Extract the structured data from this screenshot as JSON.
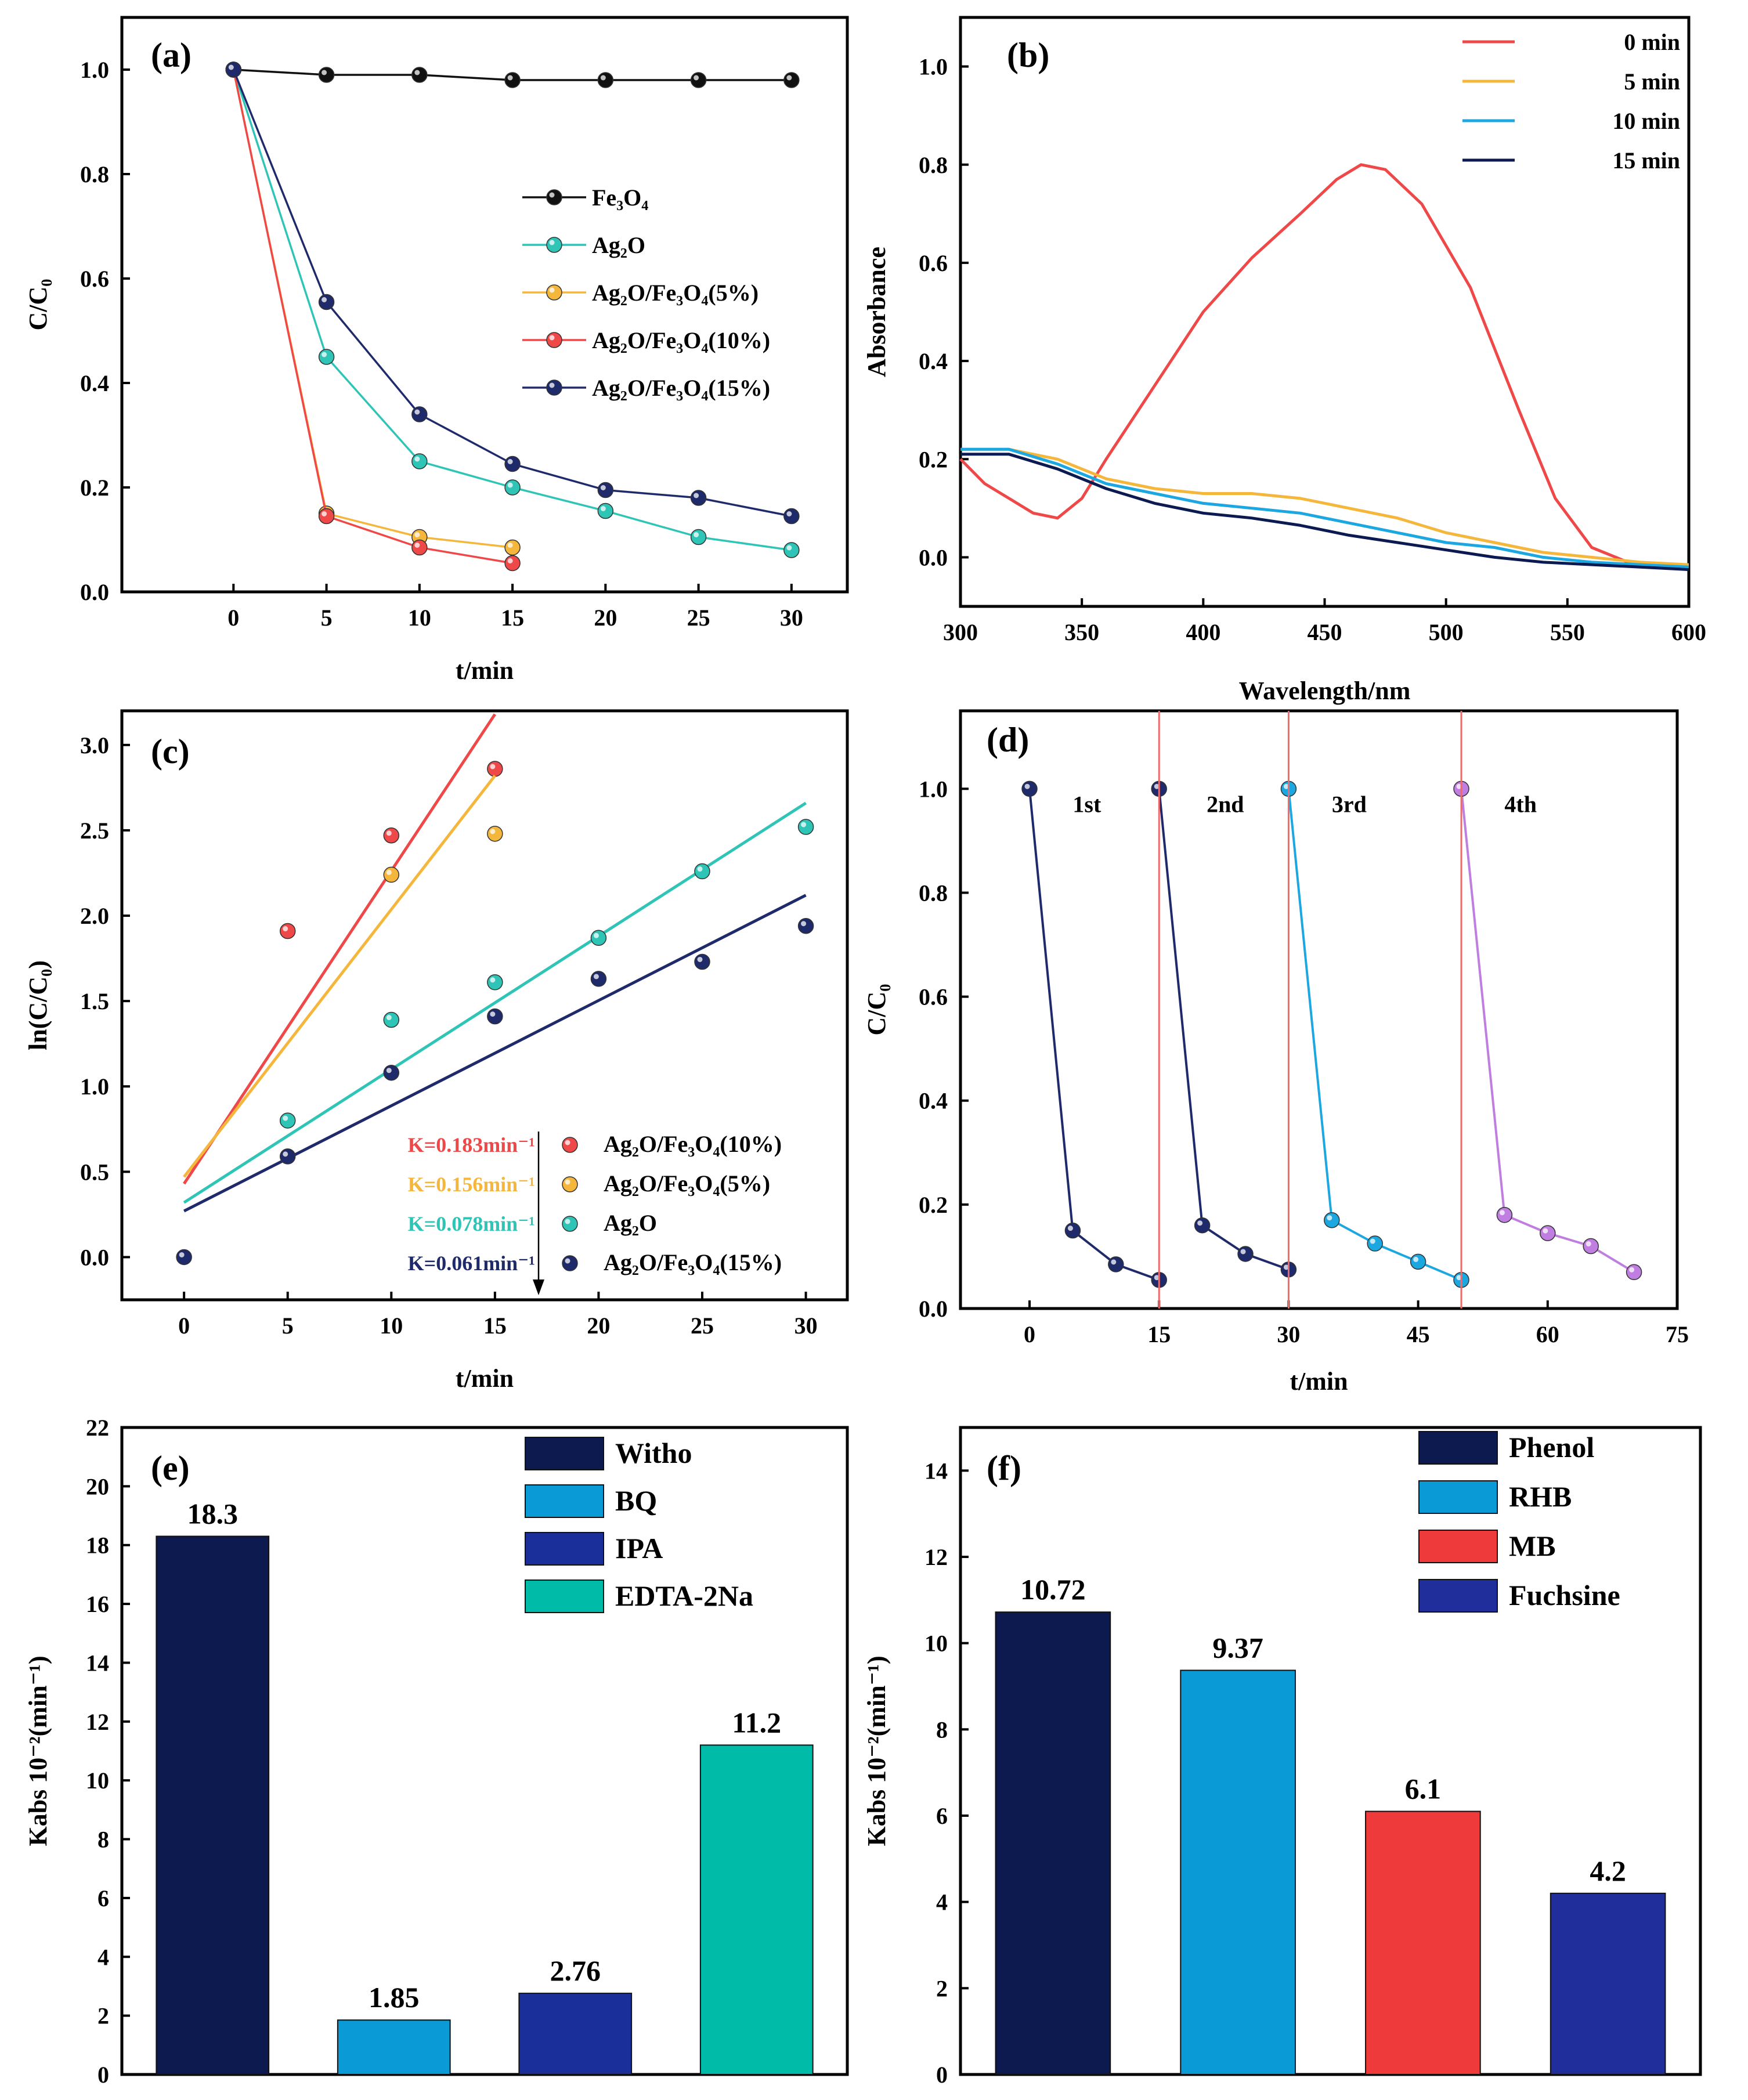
{
  "colors": {
    "black": "#111111",
    "teal": "#2ec4b6",
    "orange": "#f5b63c",
    "red": "#ef4848",
    "navy": "#1f2a6b",
    "blue": "#1da7e0",
    "purple": "#c07ee0",
    "darknavy": "#0b1a50",
    "barnavy": "#0d1a4f",
    "barblue": "#0a9ad6",
    "bardarkblue": "#1a2f9a",
    "barteal": "#00bba8",
    "barred": "#ee3a3a",
    "barviolet": "#1f2e9a"
  },
  "chart_data": [
    {
      "id": "a",
      "panel_label": "(a)",
      "type": "line",
      "xlabel": "t/min",
      "ylabel": "C/C₀",
      "xlim": [
        -6,
        33
      ],
      "ylim": [
        0,
        1.1
      ],
      "xticks": [
        0,
        5,
        10,
        15,
        20,
        25,
        30
      ],
      "yticks": [
        0.0,
        0.2,
        0.4,
        0.6,
        0.8,
        1.0
      ],
      "ytick_labels": [
        "0.0",
        "0.2",
        "0.4",
        "0.6",
        "0.8",
        "1.0"
      ],
      "series": [
        {
          "name": "Fe₃O₄",
          "color": "black",
          "x": [
            0,
            5,
            10,
            15,
            20,
            25,
            30
          ],
          "y": [
            1.0,
            0.99,
            0.99,
            0.98,
            0.98,
            0.98,
            0.98
          ]
        },
        {
          "name": "Ag₂O",
          "color": "teal",
          "x": [
            0,
            5,
            10,
            15,
            20,
            25,
            30
          ],
          "y": [
            1.0,
            0.45,
            0.25,
            0.2,
            0.155,
            0.105,
            0.08
          ]
        },
        {
          "name": "Ag₂O/Fe₃O₄(5%)",
          "color": "orange",
          "x": [
            0,
            5,
            10,
            15
          ],
          "y": [
            1.0,
            0.15,
            0.105,
            0.085
          ]
        },
        {
          "name": "Ag₂O/Fe₃O₄(10%)",
          "color": "red",
          "x": [
            0,
            5,
            10,
            15
          ],
          "y": [
            1.0,
            0.145,
            0.085,
            0.055
          ]
        },
        {
          "name": "Ag₂O/Fe₃O₄(15%)",
          "color": "navy",
          "x": [
            0,
            5,
            10,
            15,
            20,
            25,
            30
          ],
          "y": [
            1.0,
            0.555,
            0.34,
            0.245,
            0.195,
            0.18,
            0.145
          ]
        }
      ]
    },
    {
      "id": "b",
      "panel_label": "(b)",
      "type": "line",
      "xlabel": "Wavelength/nm",
      "ylabel": "Absorbance",
      "xlim": [
        300,
        600
      ],
      "ylim": [
        -0.1,
        1.1
      ],
      "xticks": [
        300,
        350,
        400,
        450,
        500,
        550,
        600
      ],
      "yticks": [
        0.0,
        0.2,
        0.4,
        0.6,
        0.8,
        1.0
      ],
      "ytick_labels": [
        "0.0",
        "0.2",
        "0.4",
        "0.6",
        "0.8",
        "1.0"
      ],
      "series": [
        {
          "name": "0 min",
          "color": "red",
          "x": [
            300,
            310,
            320,
            330,
            340,
            350,
            360,
            380,
            400,
            420,
            440,
            455,
            465,
            475,
            490,
            510,
            530,
            545,
            560,
            575,
            600
          ],
          "y": [
            0.2,
            0.15,
            0.12,
            0.09,
            0.08,
            0.12,
            0.2,
            0.35,
            0.5,
            0.61,
            0.7,
            0.77,
            0.8,
            0.79,
            0.72,
            0.55,
            0.3,
            0.12,
            0.02,
            -0.01,
            -0.02
          ]
        },
        {
          "name": "5 min",
          "color": "orange",
          "x": [
            300,
            320,
            340,
            360,
            380,
            400,
            420,
            440,
            460,
            480,
            500,
            520,
            540,
            560,
            580,
            600
          ],
          "y": [
            0.22,
            0.22,
            0.2,
            0.16,
            0.14,
            0.13,
            0.13,
            0.12,
            0.1,
            0.08,
            0.05,
            0.03,
            0.01,
            0.0,
            -0.01,
            -0.015
          ]
        },
        {
          "name": "10 min",
          "color": "blue",
          "x": [
            300,
            320,
            340,
            360,
            380,
            400,
            420,
            440,
            460,
            480,
            500,
            520,
            540,
            560,
            580,
            600
          ],
          "y": [
            0.22,
            0.22,
            0.19,
            0.15,
            0.13,
            0.11,
            0.1,
            0.09,
            0.07,
            0.05,
            0.03,
            0.02,
            0.0,
            -0.01,
            -0.015,
            -0.02
          ]
        },
        {
          "name": "15 min",
          "color": "darknavy",
          "x": [
            300,
            320,
            340,
            360,
            380,
            400,
            420,
            440,
            460,
            480,
            500,
            520,
            540,
            560,
            580,
            600
          ],
          "y": [
            0.21,
            0.21,
            0.18,
            0.14,
            0.11,
            0.09,
            0.08,
            0.065,
            0.045,
            0.03,
            0.015,
            0.0,
            -0.01,
            -0.015,
            -0.02,
            -0.025
          ]
        }
      ]
    },
    {
      "id": "c",
      "panel_label": "(c)",
      "type": "scatter",
      "xlabel": "t/min",
      "ylabel": "ln(C/C₀)",
      "xlim": [
        -3,
        32
      ],
      "ylim": [
        -0.25,
        3.2
      ],
      "xticks": [
        0,
        5,
        10,
        15,
        20,
        25,
        30
      ],
      "yticks": [
        0.0,
        0.5,
        1.0,
        1.5,
        2.0,
        2.5,
        3.0
      ],
      "ytick_labels": [
        "0.0",
        "0.5",
        "1.0",
        "1.5",
        "2.0",
        "2.5",
        "3.0"
      ],
      "series": [
        {
          "name": "Ag₂O/Fe₃O₄(10%)",
          "k_label": "K=0.183min⁻¹",
          "color": "red",
          "x": [
            5,
            10,
            15
          ],
          "y": [
            1.91,
            2.47,
            2.86
          ],
          "fit": {
            "x": [
              0,
              15
            ],
            "y": [
              0.43,
              3.18
            ]
          }
        },
        {
          "name": "Ag₂O/Fe₃O₄(5%)",
          "k_label": "K=0.156min⁻¹",
          "color": "orange",
          "x": [
            10,
            15
          ],
          "y": [
            2.24,
            2.48
          ],
          "fit": {
            "x": [
              0,
              15
            ],
            "y": [
              0.47,
              2.82
            ]
          }
        },
        {
          "name": "Ag₂O",
          "k_label": "K=0.078min⁻¹",
          "color": "teal",
          "x": [
            5,
            10,
            15,
            20,
            25,
            30
          ],
          "y": [
            0.8,
            1.39,
            1.61,
            1.87,
            2.26,
            2.52
          ],
          "fit": {
            "x": [
              0,
              30
            ],
            "y": [
              0.32,
              2.66
            ]
          }
        },
        {
          "name": "Ag₂O/Fe₃O₄(15%)",
          "k_label": "K=0.061min⁻¹",
          "color": "navy",
          "x": [
            0,
            5,
            10,
            15,
            20,
            25,
            30
          ],
          "y": [
            0.0,
            0.59,
            1.08,
            1.41,
            1.63,
            1.73,
            1.94
          ],
          "fit": {
            "x": [
              0,
              30
            ],
            "y": [
              0.27,
              2.12
            ]
          }
        }
      ]
    },
    {
      "id": "d",
      "panel_label": "(d)",
      "type": "line",
      "xlabel": "t/min",
      "ylabel": "C/C₀",
      "xlim": [
        -8,
        75
      ],
      "ylim": [
        0,
        1.15
      ],
      "xticks": [
        0,
        15,
        30,
        45,
        60,
        75
      ],
      "yticks": [
        0.0,
        0.2,
        0.4,
        0.6,
        0.8,
        1.0
      ],
      "ytick_labels": [
        "0.0",
        "0.2",
        "0.4",
        "0.6",
        "0.8",
        "1.0"
      ],
      "cycle_labels": [
        "1st",
        "2nd",
        "3rd",
        "4th"
      ],
      "dividers": [
        15,
        30,
        50
      ],
      "series": [
        {
          "name": "1st",
          "color": "navy",
          "x": [
            0,
            5,
            10,
            15
          ],
          "y": [
            1.0,
            0.15,
            0.085,
            0.055
          ]
        },
        {
          "name": "2nd",
          "color": "navy",
          "x": [
            15,
            20,
            25,
            30
          ],
          "y": [
            1.0,
            0.16,
            0.105,
            0.075
          ]
        },
        {
          "name": "3rd",
          "color": "blue",
          "x": [
            30,
            35,
            40,
            45,
            50
          ],
          "y": [
            1.0,
            0.17,
            0.125,
            0.09,
            0.055
          ]
        },
        {
          "name": "4th",
          "color": "purple",
          "x": [
            50,
            55,
            60,
            65,
            70
          ],
          "y": [
            1.0,
            0.18,
            0.145,
            0.12,
            0.07
          ]
        }
      ]
    },
    {
      "id": "e",
      "panel_label": "(e)",
      "type": "bar",
      "ylabel": "Kabs 10⁻²(min⁻¹)",
      "ylim": [
        0,
        22
      ],
      "yticks": [
        0,
        2,
        4,
        6,
        8,
        10,
        12,
        14,
        16,
        18,
        20,
        22
      ],
      "ytick_labels": [
        "0",
        "2",
        "4",
        "6",
        "8",
        "10",
        "12",
        "14",
        "16",
        "18",
        "20",
        "22"
      ],
      "categories": [
        "Witho",
        "BQ",
        "IPA",
        "EDTA-2Na"
      ],
      "values": [
        18.3,
        1.85,
        2.76,
        11.2
      ],
      "value_labels": [
        "18.3",
        "1.85",
        "2.76",
        "11.2"
      ],
      "bar_colors": [
        "barnavy",
        "barblue",
        "bardarkblue",
        "barteal"
      ]
    },
    {
      "id": "f",
      "panel_label": "(f)",
      "type": "bar",
      "ylabel": "Kabs 10⁻²(min⁻¹)",
      "ylim": [
        0,
        15
      ],
      "yticks": [
        0,
        2,
        4,
        6,
        8,
        10,
        12,
        14
      ],
      "ytick_labels": [
        "0",
        "2",
        "4",
        "6",
        "8",
        "10",
        "12",
        "14"
      ],
      "categories": [
        "Phenol",
        "RHB",
        "MB",
        "Fuchsine"
      ],
      "values": [
        10.72,
        9.37,
        6.1,
        4.2
      ],
      "value_labels": [
        "10.72",
        "9.37",
        "6.1",
        "4.2"
      ],
      "bar_colors": [
        "barnavy",
        "barblue",
        "barred",
        "barviolet"
      ]
    }
  ]
}
